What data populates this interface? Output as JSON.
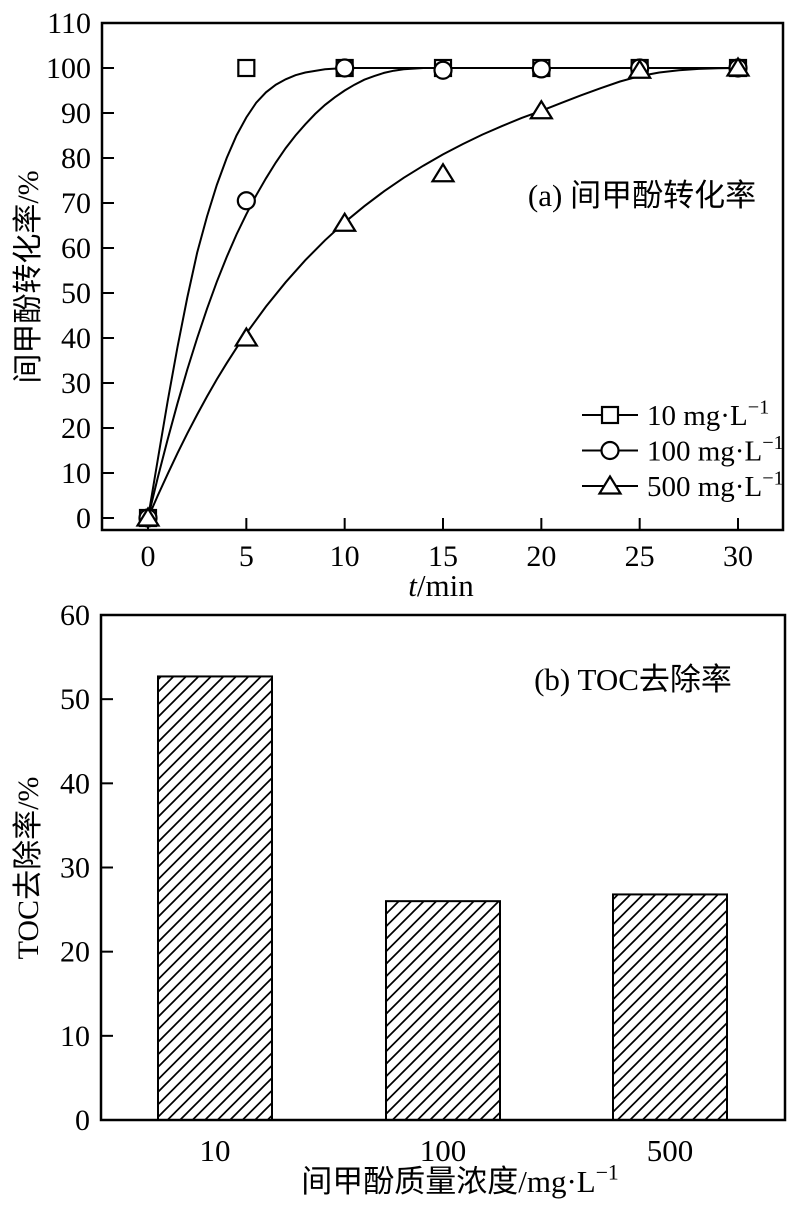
{
  "figure": {
    "background": "#ffffff",
    "ink_color": "#000000",
    "description_a": "(a) 间甲酚转化率",
    "description_b": "(b) TOC去除率"
  },
  "chart_data": [
    {
      "type": "line",
      "panel_label": "(a) 间甲酚转化率",
      "ylabel": "间甲酚转化率/%",
      "xlabel_parts": [
        {
          "text": "t",
          "italic": true
        },
        {
          "text": "/min",
          "italic": false
        }
      ],
      "xticks": [
        0,
        5,
        10,
        15,
        20,
        25,
        30
      ],
      "yticks": [
        0,
        10,
        20,
        30,
        40,
        50,
        60,
        70,
        80,
        90,
        100,
        110
      ],
      "xlim": [
        -2.3,
        32.3
      ],
      "ylim": [
        -2.7,
        112.7
      ],
      "grid": false,
      "legend_position": "inside lower right",
      "series": [
        {
          "label": {
            "base": "10 mg·L",
            "sup": "−1"
          },
          "marker": "square",
          "x": [
            0,
            5,
            10,
            15,
            20,
            25,
            30
          ],
          "y": [
            0,
            100,
            100,
            100,
            100,
            100,
            100
          ],
          "curve": [
            [
              0,
              0
            ],
            [
              0.5,
              13
            ],
            [
              1,
              26
            ],
            [
              1.5,
              38
            ],
            [
              2,
              49
            ],
            [
              2.5,
              59
            ],
            [
              3,
              67
            ],
            [
              3.5,
              74
            ],
            [
              4,
              80
            ],
            [
              4.5,
              85
            ],
            [
              5,
              89
            ],
            [
              5.5,
              92.3
            ],
            [
              6,
              94.6
            ],
            [
              6.5,
              96.3
            ],
            [
              7,
              97.5
            ],
            [
              7.5,
              98.4
            ],
            [
              8,
              99
            ],
            [
              9,
              99.7
            ],
            [
              10,
              100
            ],
            [
              12,
              100
            ],
            [
              15,
              100
            ],
            [
              20,
              100
            ],
            [
              25,
              100
            ],
            [
              30,
              100
            ]
          ]
        },
        {
          "label": {
            "base": "100 mg·L",
            "sup": "−1"
          },
          "marker": "circle",
          "x": [
            0,
            5,
            10,
            15,
            20,
            25,
            30
          ],
          "y": [
            0,
            70.5,
            100,
            99.5,
            99.8,
            100,
            100
          ],
          "curve": [
            [
              0,
              0
            ],
            [
              0.5,
              9
            ],
            [
              1,
              17.5
            ],
            [
              1.5,
              25.5
            ],
            [
              2,
              33
            ],
            [
              2.5,
              40
            ],
            [
              3,
              46.5
            ],
            [
              3.5,
              52.5
            ],
            [
              4,
              58
            ],
            [
              4.5,
              63
            ],
            [
              5,
              67.5
            ],
            [
              5.5,
              71.7
            ],
            [
              6,
              75.5
            ],
            [
              6.5,
              79
            ],
            [
              7,
              82.2
            ],
            [
              7.5,
              85
            ],
            [
              8,
              87.5
            ],
            [
              8.5,
              89.8
            ],
            [
              9,
              91.8
            ],
            [
              9.5,
              93.5
            ],
            [
              10,
              95
            ],
            [
              10.5,
              96.3
            ],
            [
              11,
              97.4
            ],
            [
              11.5,
              98.2
            ],
            [
              12,
              98.9
            ],
            [
              12.5,
              99.4
            ],
            [
              13,
              99.7
            ],
            [
              14,
              100
            ],
            [
              15,
              100
            ],
            [
              20,
              100
            ],
            [
              25,
              100
            ],
            [
              30,
              100
            ]
          ]
        },
        {
          "label": {
            "base": "500 mg·L",
            "sup": "−1"
          },
          "marker": "triangle",
          "x": [
            0,
            5,
            10,
            15,
            20,
            25,
            30
          ],
          "y": [
            0,
            40,
            65.5,
            76.5,
            90.5,
            99.5,
            100
          ],
          "curve": [
            [
              0,
              0
            ],
            [
              0.5,
              5
            ],
            [
              1,
              9.8
            ],
            [
              1.5,
              14.4
            ],
            [
              2,
              18.8
            ],
            [
              2.5,
              23
            ],
            [
              3,
              27
            ],
            [
              3.5,
              30.8
            ],
            [
              4,
              34.4
            ],
            [
              4.5,
              37.8
            ],
            [
              5,
              41
            ],
            [
              6,
              47
            ],
            [
              7,
              52.4
            ],
            [
              8,
              57.3
            ],
            [
              9,
              61.7
            ],
            [
              10,
              65.7
            ],
            [
              11,
              69.3
            ],
            [
              12,
              72.6
            ],
            [
              13,
              75.6
            ],
            [
              14,
              78.3
            ],
            [
              15,
              80.8
            ],
            [
              16,
              83.1
            ],
            [
              17,
              85.2
            ],
            [
              18,
              87.1
            ],
            [
              19,
              88.9
            ],
            [
              20,
              90.5
            ],
            [
              21,
              92.2
            ],
            [
              22,
              93.9
            ],
            [
              23,
              95.5
            ],
            [
              24,
              97
            ],
            [
              25,
              98.2
            ],
            [
              26,
              99
            ],
            [
              27,
              99.5
            ],
            [
              28,
              99.8
            ],
            [
              29,
              99.95
            ],
            [
              30,
              100
            ]
          ]
        }
      ]
    },
    {
      "type": "bar",
      "panel_label": "(b) TOC去除率",
      "ylabel": "TOC去除率/%",
      "xlabel": {
        "base": "间甲酚质量浓度/mg·L",
        "sup": "−1"
      },
      "categories": [
        "10",
        "100",
        "500"
      ],
      "values": [
        52.7,
        26,
        26.8
      ],
      "yticks": [
        0,
        10,
        20,
        30,
        40,
        50,
        60
      ],
      "ylim": [
        0,
        60
      ],
      "grid": false,
      "bar_fill": "diagonal-hatch",
      "bar_color": "#000000"
    }
  ]
}
